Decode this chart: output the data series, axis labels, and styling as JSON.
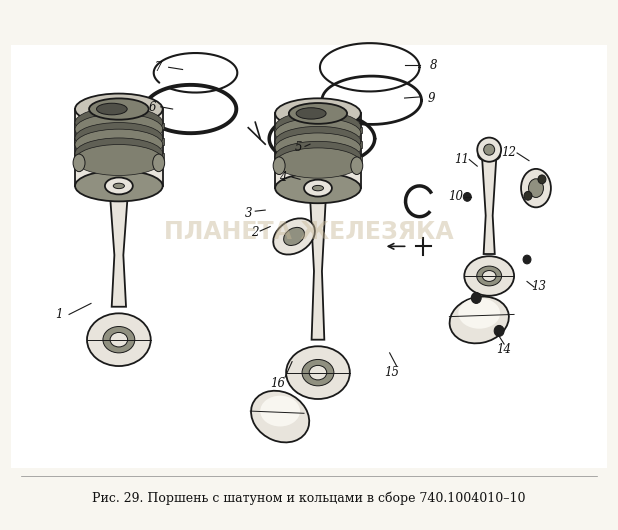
{
  "title": "Рис. 29. Поршень с шатуном и кольцами в сборе 740.1004010–10",
  "title_fontsize": 9.5,
  "bg_color": "#f8f6f0",
  "fig_width": 6.18,
  "fig_height": 5.3,
  "dpi": 100,
  "watermark_text": "ПЛАНЕТА ЖЕЛЕЗЯКА",
  "watermark_color": "#c8b898",
  "watermark_alpha": 0.45,
  "watermark_fontsize": 17,
  "ec": "#1a1a1a",
  "fc_light": "#e8e4dc",
  "fc_mid": "#c8c4b8",
  "fc_dark": "#909080",
  "lw_main": 1.3,
  "lw_thin": 0.7,
  "label_fontsize": 8.5,
  "caption_fontsize": 9.0
}
